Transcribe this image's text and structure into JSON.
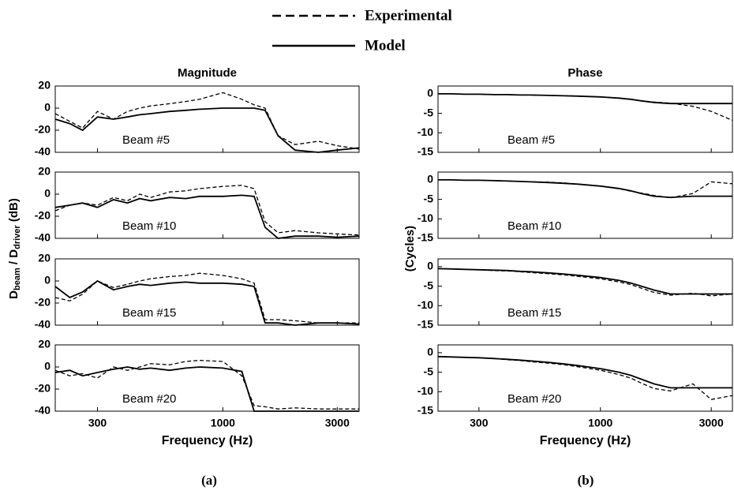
{
  "legend": [
    {
      "name": "Experimental",
      "dash": true
    },
    {
      "name": "Model",
      "dash": false
    }
  ],
  "left_ylabel": [
    "D",
    "beam",
    " / D",
    "driver",
    " (dB)"
  ],
  "right_ylabel": "(Cycles)",
  "subfigure_labels": [
    "(a)",
    "(b)"
  ],
  "chart_data": [
    {
      "type": "line",
      "title": "Magnitude",
      "annotation": "Beam #5",
      "log_x": true,
      "xlim": [
        200,
        3700
      ],
      "xticks": [
        300,
        1000,
        3000
      ],
      "ylim": [
        -40,
        20
      ],
      "yticks": [
        20,
        0,
        -20,
        -40
      ],
      "x": [
        200,
        230,
        260,
        300,
        350,
        400,
        450,
        500,
        600,
        700,
        800,
        1000,
        1200,
        1350,
        1500,
        1700,
        2000,
        2500,
        3000,
        3700
      ],
      "series": [
        {
          "dash": true,
          "color": "#000",
          "values": [
            -5,
            -12,
            -18,
            -3,
            -10,
            -3,
            0,
            2,
            4,
            6,
            8,
            14,
            8,
            3,
            0,
            -25,
            -33,
            -30,
            -34,
            -37
          ]
        },
        {
          "dash": false,
          "color": "#000",
          "values": [
            -10,
            -14,
            -20,
            -8,
            -10,
            -8,
            -6,
            -5,
            -3,
            -2,
            -1,
            0,
            0,
            0,
            -2,
            -25,
            -38,
            -40,
            -38,
            -36
          ]
        }
      ]
    },
    {
      "type": "line",
      "annotation": "Beam #10",
      "log_x": true,
      "xlim": [
        200,
        3700
      ],
      "xticks": [
        300,
        1000,
        3000
      ],
      "ylim": [
        -40,
        20
      ],
      "yticks": [
        20,
        0,
        -20,
        -40
      ],
      "x": [
        200,
        230,
        260,
        300,
        350,
        400,
        450,
        500,
        600,
        700,
        800,
        1000,
        1200,
        1350,
        1500,
        1700,
        2000,
        2500,
        3000,
        3700
      ],
      "series": [
        {
          "dash": true,
          "color": "#000",
          "values": [
            -15,
            -10,
            -8,
            -10,
            -3,
            -6,
            0,
            -3,
            2,
            3,
            5,
            7,
            8,
            5,
            -25,
            -35,
            -33,
            -35,
            -36,
            -37
          ]
        },
        {
          "dash": false,
          "color": "#000",
          "values": [
            -12,
            -10,
            -8,
            -12,
            -5,
            -8,
            -4,
            -6,
            -3,
            -4,
            -2,
            -2,
            -1,
            -2,
            -30,
            -40,
            -38,
            -38,
            -39,
            -38
          ]
        }
      ]
    },
    {
      "type": "line",
      "annotation": "Beam #15",
      "log_x": true,
      "xlim": [
        200,
        3700
      ],
      "xticks": [
        300,
        1000,
        3000
      ],
      "ylim": [
        -40,
        20
      ],
      "yticks": [
        20,
        0,
        -20,
        -40
      ],
      "x": [
        200,
        230,
        260,
        300,
        350,
        400,
        450,
        500,
        600,
        700,
        800,
        1000,
        1200,
        1350,
        1500,
        1700,
        2000,
        2500,
        3000,
        3700
      ],
      "series": [
        {
          "dash": true,
          "color": "#000",
          "values": [
            -15,
            -18,
            -12,
            0,
            -6,
            -3,
            0,
            2,
            4,
            5,
            7,
            5,
            2,
            -2,
            -35,
            -35,
            -36,
            -38,
            -38,
            -38
          ]
        },
        {
          "dash": false,
          "color": "#000",
          "values": [
            -5,
            -15,
            -10,
            0,
            -8,
            -5,
            -3,
            -4,
            -2,
            -1,
            -2,
            -2,
            -3,
            -5,
            -38,
            -38,
            -40,
            -38,
            -38,
            -39
          ]
        }
      ]
    },
    {
      "type": "line",
      "annotation": "Beam #20",
      "xlabel": "Frequency (Hz)",
      "xtick_labels": true,
      "log_x": true,
      "xlim": [
        200,
        3700
      ],
      "xticks": [
        300,
        1000,
        3000
      ],
      "ylim": [
        -40,
        20
      ],
      "yticks": [
        20,
        0,
        -20,
        -40
      ],
      "x": [
        200,
        230,
        260,
        300,
        350,
        400,
        450,
        500,
        600,
        700,
        800,
        1000,
        1200,
        1350,
        1500,
        1700,
        2000,
        2500,
        3000,
        3700
      ],
      "series": [
        {
          "dash": true,
          "color": "#000",
          "values": [
            -3,
            -8,
            -6,
            -10,
            0,
            -3,
            0,
            3,
            2,
            5,
            6,
            5,
            -8,
            -35,
            -36,
            -38,
            -37,
            -38,
            -38,
            -38
          ]
        },
        {
          "dash": false,
          "color": "#000",
          "values": [
            -5,
            -3,
            -8,
            -5,
            -2,
            0,
            -2,
            -1,
            -3,
            -1,
            0,
            -1,
            -4,
            -40,
            -40,
            -40,
            -40,
            -40,
            -40,
            -40
          ]
        }
      ]
    },
    {
      "type": "line",
      "title": "Phase",
      "annotation": "Beam #5",
      "log_x": true,
      "xlim": [
        200,
        3700
      ],
      "xticks": [
        300,
        1000,
        3000
      ],
      "ylim": [
        -15,
        2
      ],
      "yticks": [
        0,
        -5,
        -10,
        -15
      ],
      "x": [
        200,
        230,
        260,
        300,
        350,
        400,
        450,
        500,
        600,
        700,
        800,
        1000,
        1200,
        1350,
        1500,
        1700,
        2000,
        2500,
        3000,
        3700
      ],
      "series": [
        {
          "dash": true,
          "color": "#000",
          "values": [
            0,
            0,
            -0.1,
            -0.1,
            -0.2,
            -0.2,
            -0.3,
            -0.3,
            -0.4,
            -0.5,
            -0.6,
            -0.8,
            -1.1,
            -1.4,
            -1.8,
            -2.1,
            -2.4,
            -3.2,
            -4.5,
            -6.8
          ]
        },
        {
          "dash": false,
          "color": "#000",
          "values": [
            0,
            0,
            -0.1,
            -0.1,
            -0.2,
            -0.2,
            -0.3,
            -0.3,
            -0.4,
            -0.5,
            -0.6,
            -0.8,
            -1.1,
            -1.4,
            -1.8,
            -2.2,
            -2.5,
            -2.5,
            -2.5,
            -2.5
          ]
        }
      ]
    },
    {
      "type": "line",
      "annotation": "Beam #10",
      "log_x": true,
      "xlim": [
        200,
        3700
      ],
      "xticks": [
        300,
        1000,
        3000
      ],
      "ylim": [
        -15,
        2
      ],
      "yticks": [
        0,
        -5,
        -10,
        -15
      ],
      "x": [
        200,
        230,
        260,
        300,
        350,
        400,
        450,
        500,
        600,
        700,
        800,
        1000,
        1200,
        1350,
        1500,
        1700,
        2000,
        2500,
        3000,
        3700
      ],
      "series": [
        {
          "dash": true,
          "color": "#000",
          "values": [
            0,
            0,
            -0.1,
            -0.1,
            -0.2,
            -0.3,
            -0.4,
            -0.5,
            -0.6,
            -0.8,
            -1.1,
            -1.6,
            -2.3,
            -2.9,
            -3.4,
            -4.0,
            -4.6,
            -3.5,
            -0.5,
            -1
          ]
        },
        {
          "dash": false,
          "color": "#000",
          "values": [
            0,
            0,
            -0.1,
            -0.1,
            -0.2,
            -0.3,
            -0.4,
            -0.5,
            -0.7,
            -0.9,
            -1.1,
            -1.6,
            -2.2,
            -2.8,
            -3.5,
            -4.2,
            -4.5,
            -4.2,
            -4.2,
            -4.2
          ]
        }
      ]
    },
    {
      "type": "line",
      "annotation": "Beam #15",
      "log_x": true,
      "xlim": [
        200,
        3700
      ],
      "xticks": [
        300,
        1000,
        3000
      ],
      "ylim": [
        -15,
        2
      ],
      "yticks": [
        0,
        -5,
        -10,
        -15
      ],
      "x": [
        200,
        230,
        260,
        300,
        350,
        400,
        450,
        500,
        600,
        700,
        800,
        1000,
        1200,
        1350,
        1500,
        1700,
        2000,
        2500,
        3000,
        3700
      ],
      "series": [
        {
          "dash": true,
          "color": "#000",
          "values": [
            -0.5,
            -0.6,
            -0.7,
            -0.8,
            -1.0,
            -1.1,
            -1.3,
            -1.5,
            -1.8,
            -2.1,
            -2.5,
            -3.1,
            -3.9,
            -4.6,
            -5.5,
            -6.6,
            -7.3,
            -6.8,
            -7.5,
            -7
          ]
        },
        {
          "dash": false,
          "color": "#000",
          "values": [
            -0.5,
            -0.6,
            -0.7,
            -0.8,
            -0.9,
            -1.0,
            -1.2,
            -1.3,
            -1.6,
            -1.9,
            -2.2,
            -2.8,
            -3.5,
            -4.2,
            -5,
            -6,
            -7,
            -7,
            -7,
            -7
          ]
        }
      ]
    },
    {
      "type": "line",
      "annotation": "Beam #20",
      "xlabel": "Frequency (Hz)",
      "xtick_labels": true,
      "log_x": true,
      "xlim": [
        200,
        3700
      ],
      "xticks": [
        300,
        1000,
        3000
      ],
      "ylim": [
        -15,
        2
      ],
      "yticks": [
        0,
        -5,
        -10,
        -15
      ],
      "x": [
        200,
        230,
        260,
        300,
        350,
        400,
        450,
        500,
        600,
        700,
        800,
        1000,
        1200,
        1350,
        1500,
        1700,
        2000,
        2500,
        3000,
        3700
      ],
      "series": [
        {
          "dash": true,
          "color": "#000",
          "values": [
            -1,
            -1.1,
            -1.2,
            -1.3,
            -1.5,
            -1.8,
            -2.0,
            -2.3,
            -2.7,
            -3.1,
            -3.6,
            -4.5,
            -5.6,
            -6.5,
            -7.8,
            -9.2,
            -9.8,
            -8,
            -12,
            -11
          ]
        },
        {
          "dash": false,
          "color": "#000",
          "values": [
            -1,
            -1.1,
            -1.2,
            -1.3,
            -1.5,
            -1.7,
            -1.9,
            -2.1,
            -2.5,
            -2.9,
            -3.3,
            -4.1,
            -5,
            -5.8,
            -6.8,
            -8,
            -9,
            -9,
            -9,
            -9
          ]
        }
      ]
    }
  ]
}
